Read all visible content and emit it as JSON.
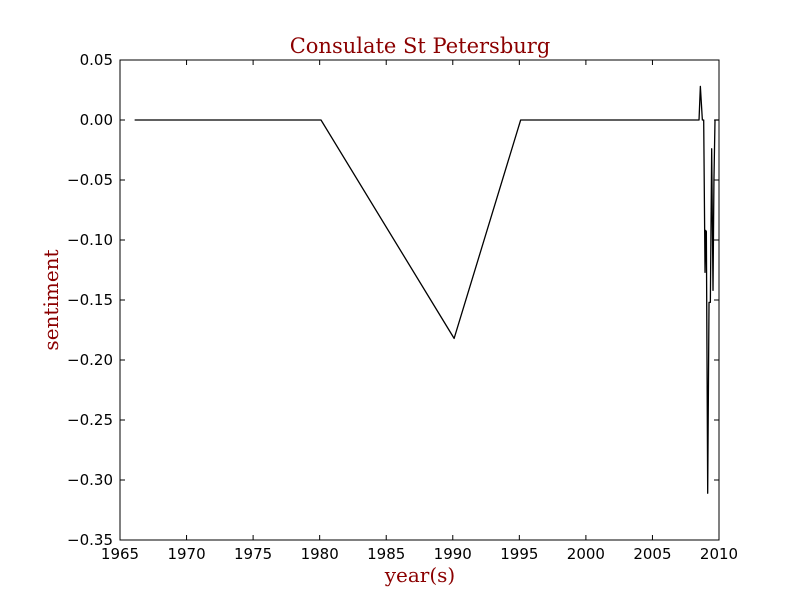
{
  "chart_data": {
    "type": "line",
    "title": "Consulate St Petersburg",
    "xlabel": "year(s)",
    "ylabel": "sentiment",
    "xlim": [
      1965,
      2010
    ],
    "ylim": [
      -0.35,
      0.05
    ],
    "grid": false,
    "legend": "none",
    "line_color": "#000000",
    "title_color": "#8b0000",
    "xticks": [
      1965,
      1970,
      1975,
      1980,
      1985,
      1990,
      1995,
      2000,
      2005,
      2010
    ],
    "yticks": [
      0.05,
      0.0,
      -0.05,
      -0.1,
      -0.15,
      -0.2,
      -0.25,
      -0.3,
      -0.35
    ],
    "xtick_labels": [
      "1965",
      "1970",
      "1975",
      "1980",
      "1985",
      "1990",
      "1995",
      "2000",
      "2005",
      "2010"
    ],
    "ytick_labels": [
      "0.05",
      "0.00",
      "−0.05",
      "−0.10",
      "−0.15",
      "−0.20",
      "−0.25",
      "−0.30",
      "−0.35"
    ],
    "series": [
      {
        "x": [
          1966.1,
          1980.1,
          1990.1,
          1995.1,
          2008.5,
          2008.6,
          2008.75,
          2008.85,
          2008.95,
          2009.0,
          2009.05,
          2009.15,
          2009.25,
          2009.35,
          2009.45,
          2009.55,
          2009.62,
          2009.7,
          2009.8,
          2009.9,
          2010.0
        ],
        "y": [
          0.0,
          0.0,
          -0.182,
          0.0,
          0.0,
          0.028,
          0.0,
          0.0,
          -0.127,
          -0.092,
          -0.093,
          -0.311,
          -0.152,
          -0.152,
          -0.024,
          -0.142,
          -0.05,
          0.0,
          0.0,
          0.0,
          0.0
        ]
      }
    ]
  }
}
